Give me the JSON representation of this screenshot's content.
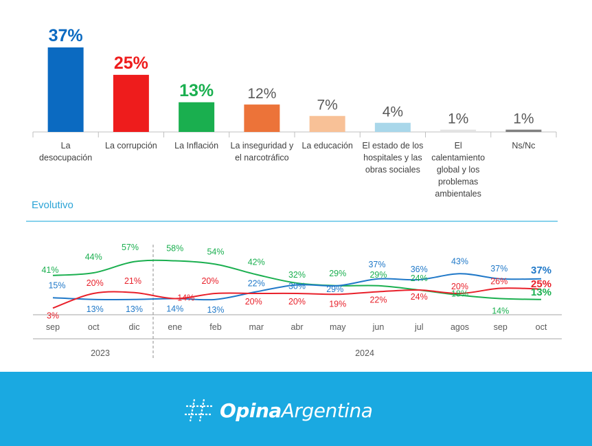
{
  "chart_data": [
    {
      "type": "bar",
      "categories": [
        [
          "La",
          "desocupación"
        ],
        [
          "La corrupción"
        ],
        [
          "La Inflación"
        ],
        [
          "La inseguridad y",
          "el narcotráfico"
        ],
        [
          "La educación"
        ],
        [
          "El estado de los",
          "hospitales y las",
          "obras sociales"
        ],
        [
          "El",
          "calentamiento",
          "global y los",
          "problemas",
          "ambientales"
        ],
        [
          "Ns/Nc"
        ]
      ],
      "values": [
        37,
        25,
        13,
        12,
        7,
        4,
        1,
        1
      ],
      "value_labels": [
        "37%",
        "25%",
        "13%",
        "12%",
        "7%",
        "4%",
        "1%",
        "1%"
      ],
      "bar_colors": [
        "#0b6ac1",
        "#ee1c1c",
        "#1aaf4f",
        "#ec7339",
        "#f8c197",
        "#a9d7ea",
        "#e3e3e3",
        "#7f7f7f"
      ],
      "label_colors": [
        "#0b6ac1",
        "#ee1c1c",
        "#1aaf4f",
        "#595959",
        "#595959",
        "#595959",
        "#595959",
        "#595959"
      ],
      "label_bold": [
        true,
        true,
        true,
        false,
        false,
        false,
        false,
        false
      ],
      "ylim": [
        0,
        37
      ]
    },
    {
      "type": "line",
      "title": "Evolutivo",
      "x": [
        "sep",
        "oct",
        "dic",
        "ene",
        "feb",
        "mar",
        "abr",
        "may",
        "jun",
        "jul",
        "agos",
        "sep",
        "oct"
      ],
      "year_labels": [
        "2023",
        "2024"
      ],
      "ylim": [
        0,
        60
      ],
      "grid": false,
      "series": [
        {
          "color": "#1aaf4f",
          "values": [
            41,
            44,
            57,
            58,
            54,
            42,
            32,
            29,
            29,
            24,
            18,
            14,
            13
          ],
          "labels": [
            "41%",
            "44%",
            "57%",
            "58%",
            "54%",
            "42%",
            "32%",
            "29%",
            "29%",
            "24%",
            "18%",
            "14%",
            "13%"
          ]
        },
        {
          "color": "#1f78c8",
          "values": [
            15,
            13,
            13,
            14,
            13,
            22,
            30,
            29,
            37,
            36,
            43,
            37,
            37
          ],
          "labels": [
            "15%",
            "13%",
            "13%",
            "14%",
            "13%",
            "22%",
            "30%",
            "29%",
            "37%",
            "36%",
            "43%",
            "37%",
            "37%"
          ]
        },
        {
          "color": "#e8202a",
          "values": [
            3,
            20,
            21,
            14,
            20,
            20,
            20,
            19,
            22,
            24,
            20,
            26,
            25
          ],
          "labels": [
            "3%",
            "20%",
            "21%",
            "14%",
            "20%",
            "20%",
            "20%",
            "19%",
            "22%",
            "24%",
            "20%",
            "26%",
            "25%"
          ]
        }
      ]
    }
  ],
  "footer": {
    "logo_bold": "Opina",
    "logo_light": "Argentina",
    "background": "#1aa9e1"
  }
}
